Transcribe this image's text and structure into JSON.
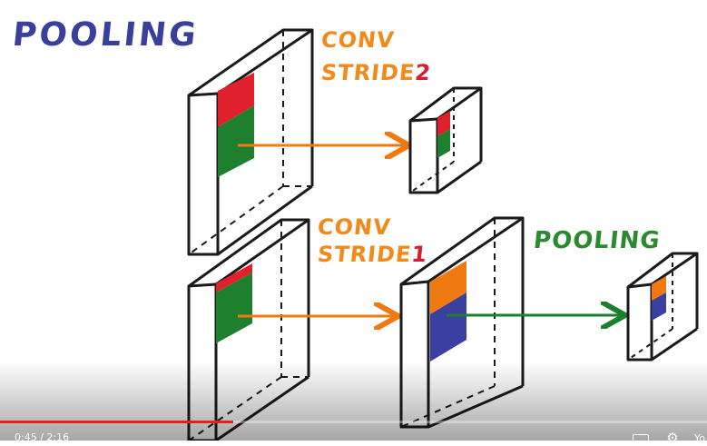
{
  "title": "POOLING",
  "labels": {
    "conv_top": "CONV",
    "stride_top_word": "STRIDE",
    "stride_top_num": "2",
    "conv_bottom": "CONV",
    "stride_bottom_word": "STRIDE",
    "stride_bottom_num": "1",
    "pooling_green": "POOLING"
  },
  "player": {
    "time": "0:45 / 2:16",
    "progress": 0.33,
    "yt_label": "Yo"
  },
  "colors": {
    "red": "#e0202a",
    "green": "#1e7f2e",
    "orange": "#f07a12",
    "blue": "#3a3fa0",
    "title_blue": "#3a3f9c",
    "label_orange": "#f08a1c",
    "label_green": "#2b8a2e",
    "progress_red": "#e62117"
  }
}
